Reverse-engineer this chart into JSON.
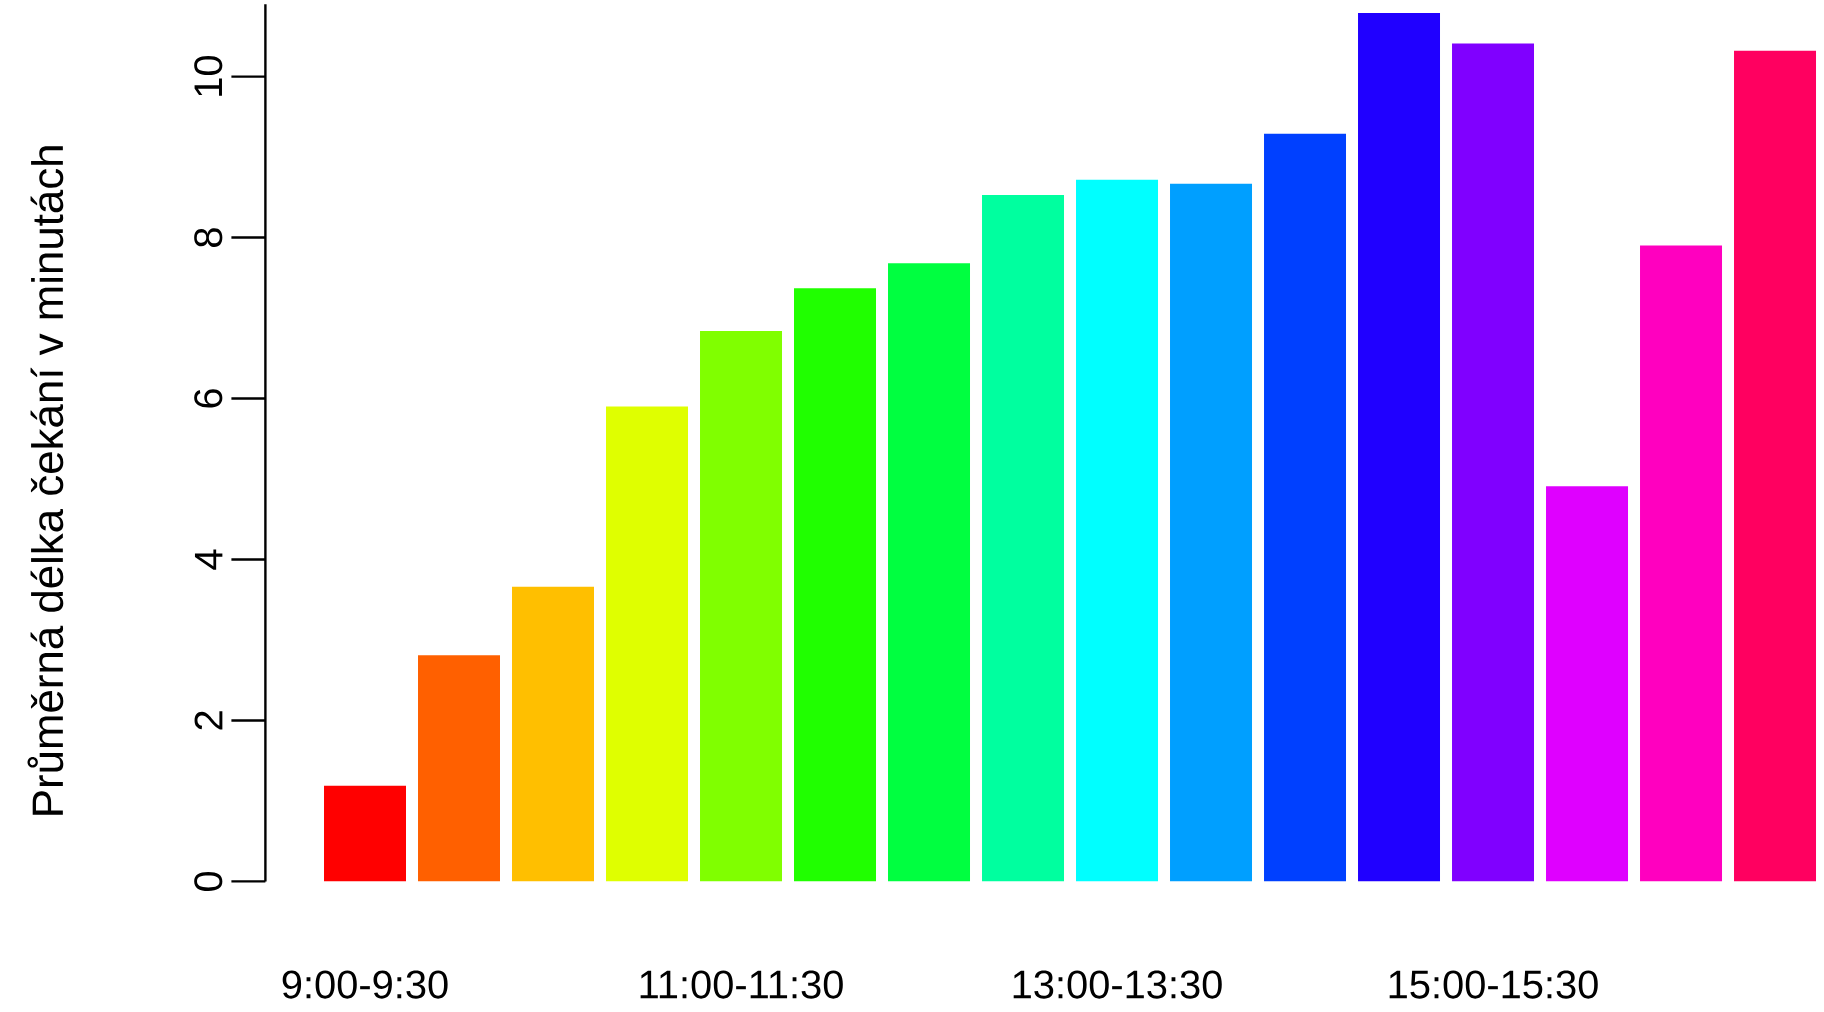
{
  "chart_data": {
    "type": "bar",
    "ylabel": "Průměrná délka čekání v minutách",
    "categories": [
      "9:00-9:30",
      null,
      null,
      null,
      "11:00-11:30",
      null,
      null,
      null,
      "13:00-13:30",
      null,
      null,
      null,
      "15:00-15:30",
      null,
      null,
      null
    ],
    "values": [
      1.19,
      2.81,
      3.66,
      5.9,
      6.84,
      7.37,
      7.68,
      8.53,
      8.72,
      8.67,
      9.29,
      10.79,
      10.41,
      4.91,
      7.9,
      10.32
    ],
    "colors": [
      "#ff0000",
      "#ff6000",
      "#ffbf00",
      "#dfff00",
      "#80ff00",
      "#20ff00",
      "#00ff40",
      "#00ff9f",
      "#00ffff",
      "#009fff",
      "#0040ff",
      "#2000ff",
      "#8000ff",
      "#df00ff",
      "#ff00bf",
      "#ff0060"
    ],
    "ylim": [
      0,
      10.9
    ],
    "yticks": [
      0,
      2,
      4,
      6,
      8,
      10
    ]
  }
}
